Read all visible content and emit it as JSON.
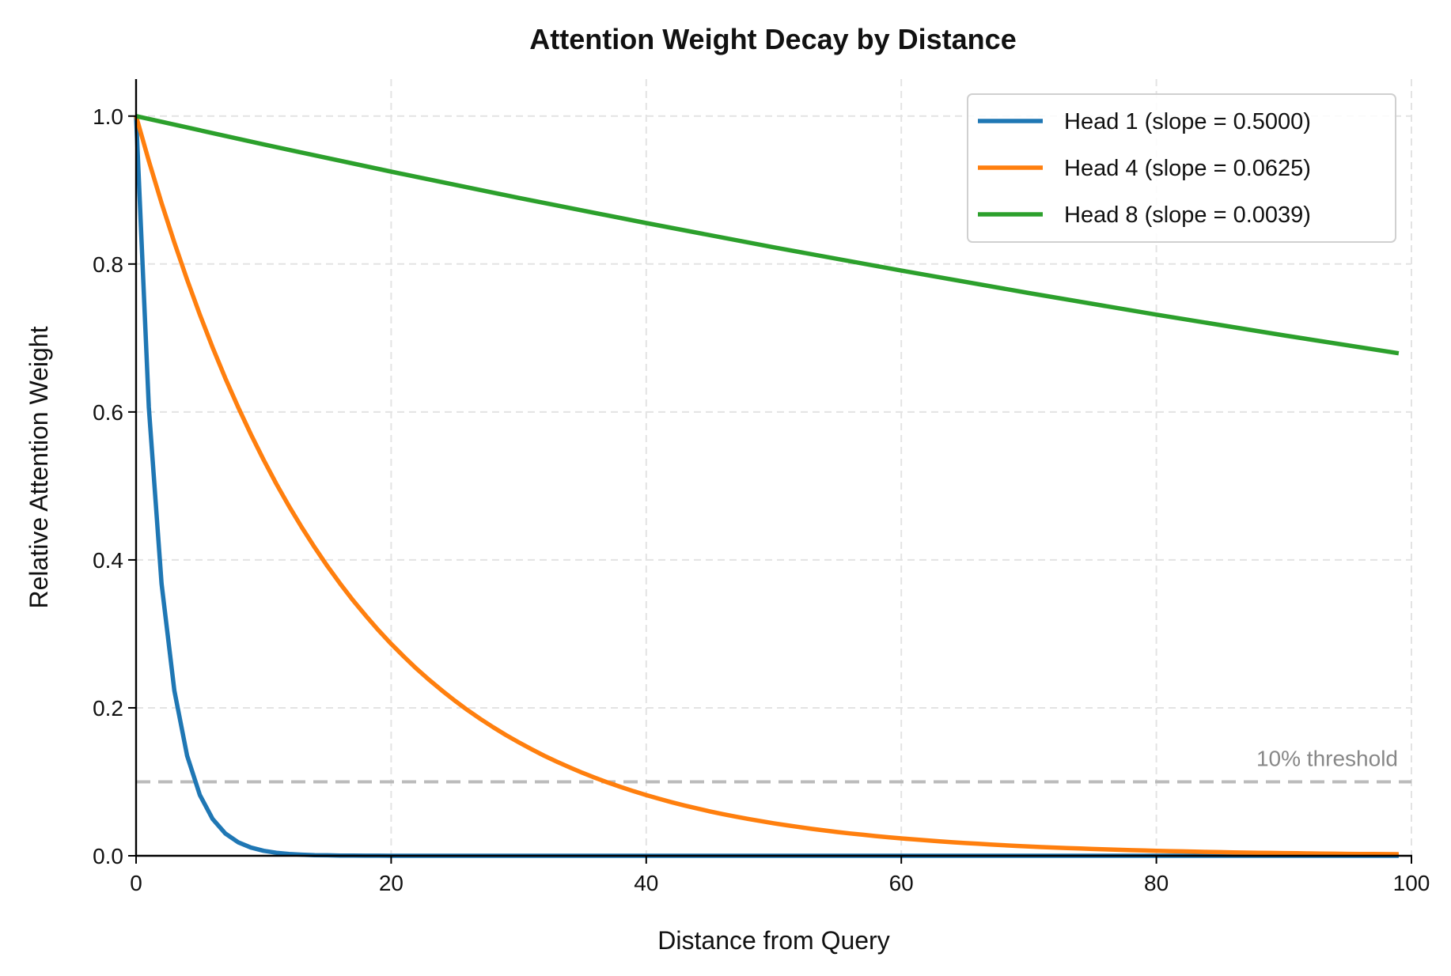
{
  "chart_data": {
    "type": "line",
    "title": "Attention Weight Decay by Distance",
    "xlabel": "Distance from Query",
    "ylabel": "Relative Attention Weight",
    "xlim": [
      0,
      100
    ],
    "ylim": [
      0,
      1.05
    ],
    "xticks": [
      "0",
      "20",
      "40",
      "60",
      "80",
      "100"
    ],
    "yticks": [
      "0.0",
      "0.2",
      "0.4",
      "0.6",
      "0.8",
      "1.0"
    ],
    "grid": true,
    "legend_position": "top-right",
    "series": [
      {
        "name": "Head 1 (slope = 0.5000)",
        "color": "#1f77b4",
        "x": [
          0,
          1,
          2,
          3,
          4,
          5,
          6,
          7,
          8,
          9,
          10,
          11,
          12,
          13,
          14,
          15,
          16,
          17,
          18,
          19,
          20,
          99
        ],
        "y": [
          1.0,
          0.6065,
          0.3679,
          0.2231,
          0.1353,
          0.0821,
          0.0498,
          0.0302,
          0.0183,
          0.0111,
          0.0067,
          0.0041,
          0.0025,
          0.0015,
          0.0009,
          0.0006,
          0.0003,
          0.0002,
          0.0001,
          0.0001,
          0.0,
          0.0
        ]
      },
      {
        "name": "Head 4 (slope = 0.0625)",
        "color": "#ff7f0e",
        "x": [
          0,
          1,
          2,
          3,
          4,
          5,
          6,
          7,
          8,
          9,
          10,
          11,
          12,
          13,
          14,
          15,
          16,
          17,
          18,
          19,
          20,
          21,
          22,
          23,
          24,
          25,
          26,
          27,
          28,
          29,
          30,
          31,
          32,
          33,
          34,
          35,
          36,
          37,
          38,
          39,
          40,
          41,
          42,
          43,
          44,
          45,
          46,
          47,
          48,
          49,
          50,
          51,
          52,
          53,
          54,
          55,
          56,
          57,
          58,
          59,
          60,
          61,
          62,
          63,
          64,
          65,
          66,
          67,
          68,
          69,
          70,
          71,
          72,
          73,
          74,
          75,
          76,
          77,
          78,
          79,
          80,
          81,
          82,
          83,
          84,
          85,
          86,
          87,
          88,
          89,
          90,
          91,
          92,
          93,
          94,
          95,
          96,
          97,
          98,
          99
        ],
        "y": [
          1.0,
          0.9394,
          0.8825,
          0.829,
          0.7788,
          0.7316,
          0.6873,
          0.6456,
          0.6065,
          0.5698,
          0.5353,
          0.5028,
          0.4724,
          0.4437,
          0.4169,
          0.3916,
          0.3679,
          0.3456,
          0.3247,
          0.305,
          0.2865,
          0.2692,
          0.2528,
          0.2375,
          0.2231,
          0.2096,
          0.1969,
          0.185,
          0.1738,
          0.1632,
          0.1534,
          0.1441,
          0.1353,
          0.1271,
          0.1194,
          0.1122,
          0.1054,
          0.099,
          0.093,
          0.0874,
          0.0821,
          0.0771,
          0.0724,
          0.068,
          0.0639,
          0.06,
          0.0564,
          0.053,
          0.0498,
          0.0468,
          0.0439,
          0.0413,
          0.0388,
          0.0364,
          0.0342,
          0.0321,
          0.0302,
          0.0284,
          0.0266,
          0.025,
          0.0235,
          0.0221,
          0.0208,
          0.0195,
          0.0183,
          0.0172,
          0.0162,
          0.0152,
          0.0143,
          0.0134,
          0.0126,
          0.0118,
          0.0111,
          0.0104,
          0.0098,
          0.0092,
          0.0087,
          0.0081,
          0.0076,
          0.0072,
          0.0067,
          0.0063,
          0.006,
          0.0056,
          0.0052,
          0.0049,
          0.0046,
          0.0043,
          0.0041,
          0.0038,
          0.0036,
          0.0034,
          0.0032,
          0.003,
          0.0028,
          0.0026,
          0.0025,
          0.0023,
          0.0022,
          0.0021
        ]
      },
      {
        "name": "Head 8 (slope = 0.0039)",
        "color": "#2ca02c",
        "x": [
          0,
          10,
          20,
          30,
          40,
          50,
          60,
          70,
          80,
          90,
          99
        ],
        "y": [
          1.0,
          0.9617,
          0.9249,
          0.8894,
          0.8554,
          0.8226,
          0.7911,
          0.7608,
          0.7316,
          0.7036,
          0.6793
        ]
      }
    ],
    "annotations": [
      {
        "type": "hline",
        "y": 0.1,
        "color": "#bbbbbb",
        "style": "dashed",
        "label": "10% threshold"
      }
    ]
  }
}
